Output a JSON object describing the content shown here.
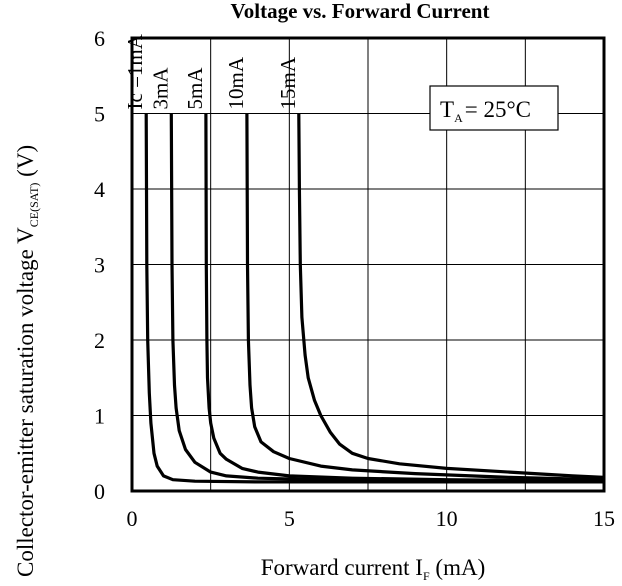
{
  "chart_data": {
    "type": "line",
    "title": "Voltage vs. Forward Current",
    "xlabel": "Forward current I",
    "xlabel_sub": "F",
    "xlabel_unit": " (mA)",
    "ylabel": "Collector-emitter saturation voltage V",
    "ylabel_sub": "CE(SAT)",
    "ylabel_unit": "  (V)",
    "xlim": [
      0,
      15
    ],
    "ylim": [
      0,
      6
    ],
    "x_ticks": [
      0,
      5,
      10,
      15
    ],
    "y_ticks": [
      0,
      1,
      2,
      3,
      4,
      5,
      6
    ],
    "x_grid": [
      2.5,
      5,
      7.5,
      10,
      12.5,
      15
    ],
    "grid": true,
    "annotation": {
      "text": "T",
      "sub": "A",
      "rest": "= 25°C"
    },
    "series": [
      {
        "name": "Ic =1mA",
        "x": [
          0.45,
          0.47,
          0.5,
          0.55,
          0.6,
          0.7,
          0.8,
          1.0,
          1.3,
          2.0,
          4.0,
          8.0,
          15.0
        ],
        "y": [
          5.0,
          3.0,
          2.0,
          1.3,
          0.9,
          0.5,
          0.33,
          0.2,
          0.15,
          0.13,
          0.12,
          0.12,
          0.12
        ]
      },
      {
        "name": "3mA",
        "x": [
          1.25,
          1.27,
          1.3,
          1.35,
          1.4,
          1.5,
          1.7,
          2.0,
          2.5,
          3.0,
          4.0,
          6.0,
          10.0,
          15.0
        ],
        "y": [
          5.0,
          3.0,
          2.0,
          1.4,
          1.1,
          0.8,
          0.55,
          0.38,
          0.25,
          0.2,
          0.17,
          0.15,
          0.13,
          0.12
        ]
      },
      {
        "name": "5mA",
        "x": [
          2.35,
          2.36,
          2.38,
          2.4,
          2.45,
          2.5,
          2.6,
          2.8,
          3.0,
          3.5,
          4.0,
          5.0,
          7.0,
          10.0,
          15.0
        ],
        "y": [
          5.0,
          3.0,
          2.0,
          1.5,
          1.1,
          0.9,
          0.7,
          0.5,
          0.42,
          0.3,
          0.25,
          0.2,
          0.17,
          0.15,
          0.13
        ]
      },
      {
        "name": "10mA",
        "x": [
          3.65,
          3.67,
          3.7,
          3.75,
          3.8,
          3.9,
          4.1,
          4.5,
          5.0,
          6.0,
          7.0,
          9.0,
          12.0,
          15.0
        ],
        "y": [
          5.0,
          3.0,
          2.0,
          1.4,
          1.1,
          0.85,
          0.65,
          0.52,
          0.43,
          0.33,
          0.28,
          0.23,
          0.18,
          0.15
        ]
      },
      {
        "name": "15mA",
        "x": [
          5.3,
          5.32,
          5.35,
          5.4,
          5.5,
          5.6,
          5.8,
          6.0,
          6.3,
          6.6,
          7.0,
          7.5,
          8.5,
          10.0,
          12.0,
          14.0,
          15.0
        ],
        "y": [
          5.0,
          4.0,
          3.0,
          2.3,
          1.8,
          1.5,
          1.2,
          1.0,
          0.78,
          0.62,
          0.5,
          0.43,
          0.36,
          0.3,
          0.25,
          0.2,
          0.18
        ]
      }
    ]
  }
}
